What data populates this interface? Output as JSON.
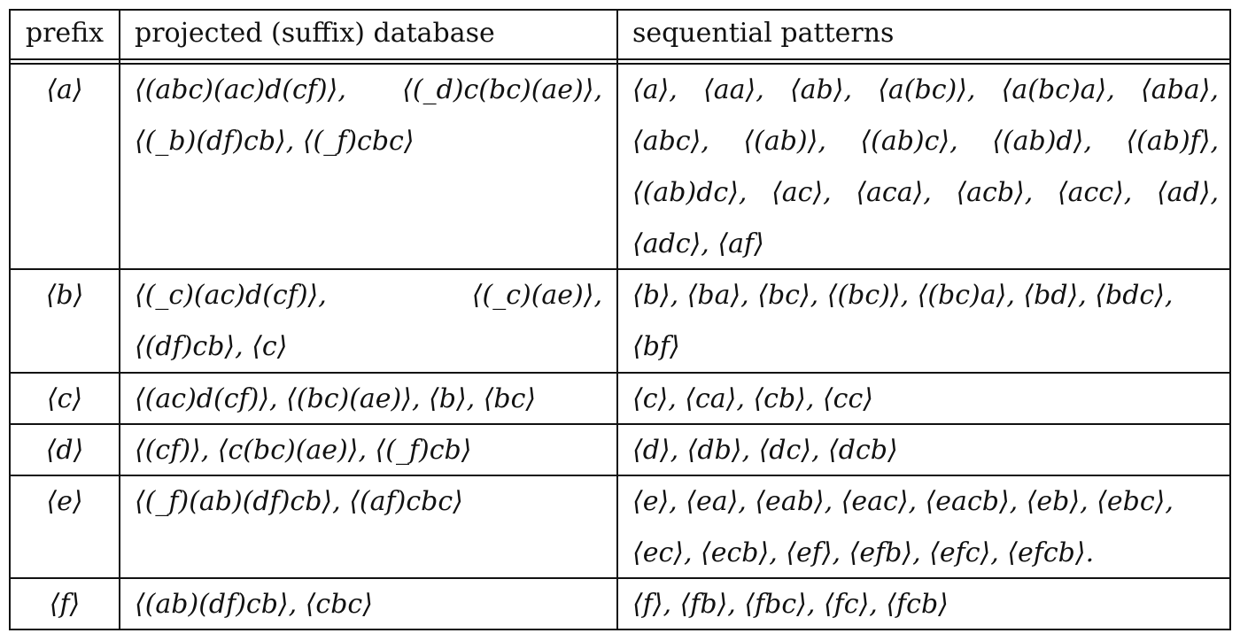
{
  "table": {
    "headers": {
      "prefix": "prefix",
      "projected": "projected (suffix) database",
      "patterns": "sequential patterns"
    },
    "rows": [
      {
        "prefix": "⟨a⟩",
        "projected": [
          [
            "⟨(abc)(ac)d(cf)⟩,",
            "⟨(_d)c(bc)(ae)⟩,"
          ],
          [
            "⟨(_b)(df)cb⟩, ⟨(_f)cbc⟩"
          ]
        ],
        "patterns": [
          [
            "⟨a⟩,",
            "⟨aa⟩,",
            "⟨ab⟩,",
            "⟨a(bc)⟩,",
            "⟨a(bc)a⟩,",
            "⟨aba⟩,"
          ],
          [
            "⟨abc⟩,",
            "⟨(ab)⟩,",
            "⟨(ab)c⟩,",
            "⟨(ab)d⟩,",
            "⟨(ab)f⟩,"
          ],
          [
            "⟨(ab)dc⟩,",
            "⟨ac⟩,",
            "⟨aca⟩,",
            "⟨acb⟩,",
            "⟨acc⟩,",
            "⟨ad⟩,"
          ],
          [
            "⟨adc⟩, ⟨af⟩"
          ]
        ]
      },
      {
        "prefix": "⟨b⟩",
        "projected": [
          [
            "⟨(_c)(ac)d(cf)⟩,",
            "⟨(_c)(ae)⟩,"
          ],
          [
            "⟨(df)cb⟩, ⟨c⟩"
          ]
        ],
        "patterns": [
          [
            "⟨b⟩, ⟨ba⟩, ⟨bc⟩, ⟨(bc)⟩, ⟨(bc)a⟩, ⟨bd⟩, ⟨bdc⟩,"
          ],
          [
            "⟨bf⟩"
          ]
        ]
      },
      {
        "prefix": "⟨c⟩",
        "projected": [
          [
            "⟨(ac)d(cf)⟩, ⟨(bc)(ae)⟩, ⟨b⟩, ⟨bc⟩"
          ]
        ],
        "patterns": [
          [
            "⟨c⟩, ⟨ca⟩, ⟨cb⟩, ⟨cc⟩"
          ]
        ]
      },
      {
        "prefix": "⟨d⟩",
        "projected": [
          [
            "⟨(cf)⟩, ⟨c(bc)(ae)⟩, ⟨(_f)cb⟩"
          ]
        ],
        "patterns": [
          [
            "⟨d⟩, ⟨db⟩, ⟨dc⟩, ⟨dcb⟩"
          ]
        ]
      },
      {
        "prefix": "⟨e⟩",
        "projected": [
          [
            "⟨(_f)(ab)(df)cb⟩, ⟨(af)cbc⟩"
          ]
        ],
        "patterns": [
          [
            "⟨e⟩, ⟨ea⟩, ⟨eab⟩, ⟨eac⟩, ⟨eacb⟩, ⟨eb⟩, ⟨ebc⟩,"
          ],
          [
            "⟨ec⟩, ⟨ecb⟩, ⟨ef⟩, ⟨efb⟩, ⟨efc⟩, ⟨efcb⟩."
          ]
        ]
      },
      {
        "prefix": "⟨f⟩",
        "projected": [
          [
            "⟨(ab)(df)cb⟩, ⟨cbc⟩"
          ]
        ],
        "patterns": [
          [
            "⟨f⟩, ⟨fb⟩, ⟨fbc⟩, ⟨fc⟩, ⟨fcb⟩"
          ]
        ]
      }
    ]
  }
}
